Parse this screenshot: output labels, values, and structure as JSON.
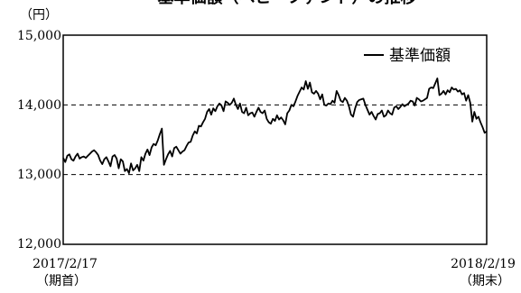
{
  "chart_data": {
    "type": "line",
    "title": "基準価額（ベビーファンド）の推移",
    "y_unit_label": "（円）",
    "ylim": [
      12000,
      15000
    ],
    "y_ticks": [
      {
        "value": 12000,
        "label": "12,000"
      },
      {
        "value": 13000,
        "label": "13,000"
      },
      {
        "value": 14000,
        "label": "14,000"
      },
      {
        "value": 15000,
        "label": "15,000"
      }
    ],
    "dashed_gridlines": [
      13000,
      14000
    ],
    "x_start": {
      "date": "2017/2/17",
      "note": "（期首）"
    },
    "x_end": {
      "date": "2018/2/19",
      "note": "（期末）"
    },
    "legend": {
      "position": "top-right"
    },
    "series": [
      {
        "name": "基準価額",
        "color": "#000000",
        "values": [
          13240,
          13180,
          13270,
          13290,
          13220,
          13200,
          13260,
          13300,
          13230,
          13250,
          13260,
          13240,
          13270,
          13300,
          13330,
          13350,
          13320,
          13280,
          13200,
          13150,
          13220,
          13250,
          13190,
          13120,
          13260,
          13280,
          13230,
          13090,
          13220,
          13190,
          13050,
          13080,
          13020,
          13160,
          13060,
          13090,
          13140,
          13050,
          13250,
          13200,
          13300,
          13360,
          13280,
          13390,
          13440,
          13420,
          13490,
          13580,
          13660,
          13140,
          13220,
          13290,
          13340,
          13260,
          13380,
          13400,
          13350,
          13300,
          13330,
          13350,
          13410,
          13460,
          13470,
          13560,
          13620,
          13590,
          13700,
          13690,
          13750,
          13800,
          13900,
          13940,
          13860,
          13950,
          13910,
          13980,
          14020,
          13990,
          13910,
          14050,
          14030,
          14000,
          14030,
          14090,
          14000,
          13940,
          14020,
          13900,
          13880,
          13960,
          13850,
          13880,
          13890,
          13830,
          13900,
          13960,
          13900,
          13880,
          13920,
          13800,
          13750,
          13730,
          13800,
          13770,
          13850,
          13790,
          13820,
          13780,
          13720,
          13880,
          13920,
          14000,
          13980,
          14050,
          14130,
          14190,
          14250,
          14220,
          14340,
          14230,
          14320,
          14180,
          14160,
          14200,
          14160,
          14080,
          14150,
          14000,
          13990,
          14020,
          14010,
          14060,
          14030,
          14200,
          14140,
          14060,
          14040,
          14100,
          14060,
          13980,
          13860,
          13830,
          13950,
          14040,
          14070,
          14080,
          14090,
          14000,
          13930,
          13860,
          13900,
          13840,
          13790,
          13870,
          13880,
          13920,
          13830,
          13850,
          13920,
          13880,
          13860,
          13960,
          13980,
          13940,
          13970,
          14010,
          13980,
          14000,
          14020,
          14060,
          14050,
          13990,
          14100,
          14080,
          14050,
          14060,
          14080,
          14100,
          14230,
          14250,
          14240,
          14310,
          14380,
          14140,
          14160,
          14200,
          14150,
          14210,
          14180,
          14250,
          14220,
          14230,
          14190,
          14210,
          14150,
          14170,
          14060,
          14140,
          14030,
          13760,
          13900,
          13800,
          13830,
          13750,
          13680,
          13600,
          13620
        ]
      }
    ]
  }
}
